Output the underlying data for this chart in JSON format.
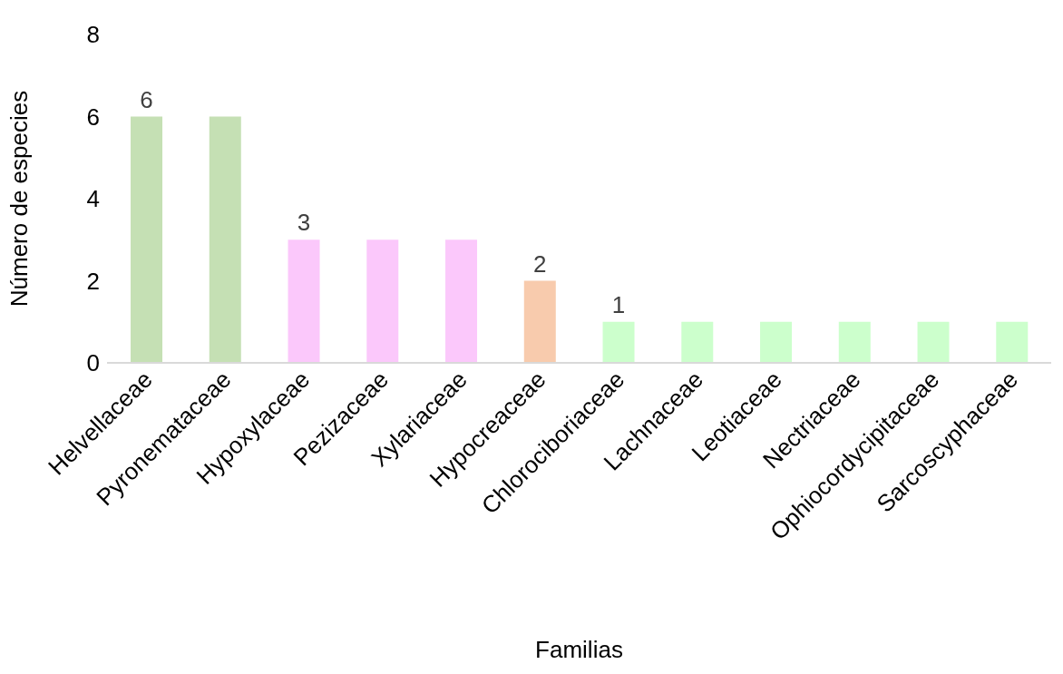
{
  "chart_data": {
    "type": "bar",
    "xlabel": "Familias",
    "ylabel": "Número de especies",
    "categories": [
      "Helvellaceae",
      "Pyronemataceae",
      "Hypoxylaceae",
      "Pezizaceae",
      "Xylariaceae",
      "Hypocreaceae",
      "Chlorociboriaceae",
      "Lachnaceae",
      "Leotiaceae",
      "Nectriaceae",
      "Ophiocordycipitaceae",
      "Sarcoscyphaceae"
    ],
    "values": [
      6,
      6,
      3,
      3,
      3,
      2,
      1,
      1,
      1,
      1,
      1,
      1
    ],
    "colors": [
      "#c5e0b4",
      "#c5e0b4",
      "#fbc8fb",
      "#fbc8fb",
      "#fbc8fb",
      "#f8cbad",
      "#ccffcc",
      "#ccffcc",
      "#ccffcc",
      "#ccffcc",
      "#ccffcc",
      "#ccffcc"
    ],
    "value_labels": [
      "6",
      null,
      "3",
      null,
      null,
      "2",
      "1",
      null,
      null,
      null,
      null,
      null
    ],
    "ylim": [
      0,
      8
    ],
    "yticks": [
      0,
      2,
      4,
      6,
      8
    ],
    "grid": false
  }
}
